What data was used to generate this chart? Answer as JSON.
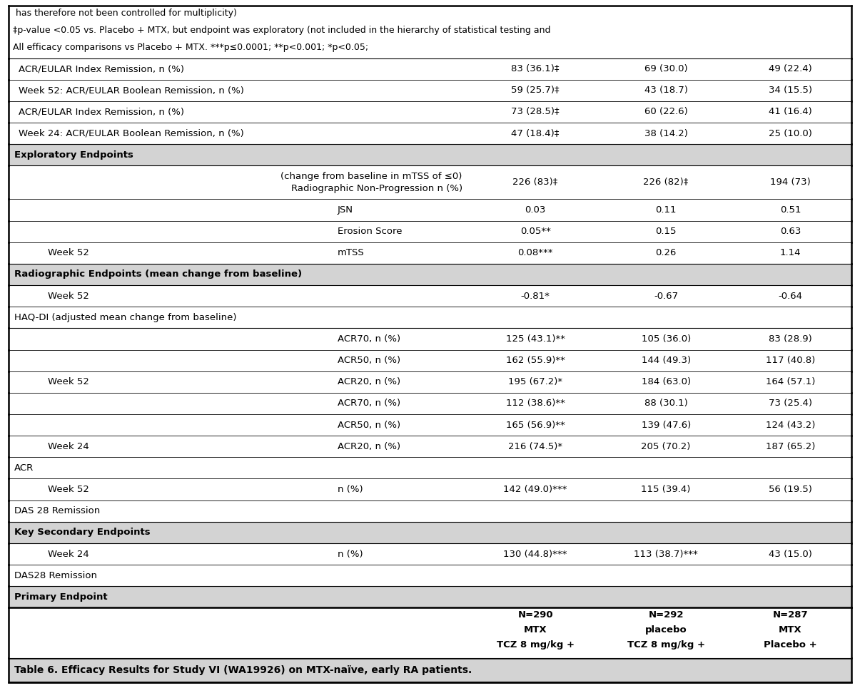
{
  "title": "Table 6. Efficacy Results for Study VI (WA19926) on MTX-naïve, early RA patients.",
  "col_headers": [
    [
      "TCZ 8 mg/kg +",
      "MTX",
      "N=290"
    ],
    [
      "TCZ 8 mg/kg +",
      "placebo",
      "N=292"
    ],
    [
      "Placebo +",
      "MTX",
      "N=287"
    ]
  ],
  "title_bg": "#d3d3d3",
  "section_bg": "#d3d3d3",
  "rows": [
    {
      "type": "section",
      "c0": "Primary Endpoint",
      "c1": "",
      "c2": "",
      "c3": "",
      "c4": ""
    },
    {
      "type": "subheader",
      "c0": "DAS28 Remission",
      "c1": "",
      "c2": "",
      "c3": "",
      "c4": ""
    },
    {
      "type": "data",
      "c0": "Week 24",
      "c1": "n (%)",
      "c2": "130 (44.8)***",
      "c3": "113 (38.7)***",
      "c4": "43 (15.0)"
    },
    {
      "type": "section",
      "c0": "Key Secondary Endpoints",
      "c1": "",
      "c2": "",
      "c3": "",
      "c4": ""
    },
    {
      "type": "subheader",
      "c0": "DAS 28 Remission",
      "c1": "",
      "c2": "",
      "c3": "",
      "c4": ""
    },
    {
      "type": "data",
      "c0": "Week 52",
      "c1": "n (%)",
      "c2": "142 (49.0)***",
      "c3": "115 (39.4)",
      "c4": "56 (19.5)"
    },
    {
      "type": "subheader",
      "c0": "ACR",
      "c1": "",
      "c2": "",
      "c3": "",
      "c4": ""
    },
    {
      "type": "data",
      "c0": "Week 24",
      "c1": "ACR20, n (%)",
      "c2": "216 (74.5)*",
      "c3": "205 (70.2)",
      "c4": "187 (65.2)"
    },
    {
      "type": "data",
      "c0": "",
      "c1": "ACR50, n (%)",
      "c2": "165 (56.9)**",
      "c3": "139 (47.6)",
      "c4": "124 (43.2)"
    },
    {
      "type": "data",
      "c0": "",
      "c1": "ACR70, n (%)",
      "c2": "112 (38.6)**",
      "c3": "88 (30.1)",
      "c4": "73 (25.4)"
    },
    {
      "type": "data",
      "c0": "Week 52",
      "c1": "ACR20, n (%)",
      "c2": "195 (67.2)*",
      "c3": "184 (63.0)",
      "c4": "164 (57.1)"
    },
    {
      "type": "data",
      "c0": "",
      "c1": "ACR50, n (%)",
      "c2": "162 (55.9)**",
      "c3": "144 (49.3)",
      "c4": "117 (40.8)"
    },
    {
      "type": "data",
      "c0": "",
      "c1": "ACR70, n (%)",
      "c2": "125 (43.1)**",
      "c3": "105 (36.0)",
      "c4": "83 (28.9)"
    },
    {
      "type": "haq_header",
      "c0": "HAQ-DI (adjusted mean change from baseline)",
      "c1": "",
      "c2": "",
      "c3": "",
      "c4": ""
    },
    {
      "type": "haq_data",
      "c0": "Week 52",
      "c1": "",
      "c2": "-0.81*",
      "c3": "-0.67",
      "c4": "-0.64"
    },
    {
      "type": "section",
      "c0": "Radiographic Endpoints (mean change from baseline)",
      "c1": "",
      "c2": "",
      "c3": "",
      "c4": ""
    },
    {
      "type": "data",
      "c0": "Week 52",
      "c1": "mTSS",
      "c2": "0.08***",
      "c3": "0.26",
      "c4": "1.14"
    },
    {
      "type": "data",
      "c0": "",
      "c1": "Erosion Score",
      "c2": "0.05**",
      "c3": "0.15",
      "c4": "0.63"
    },
    {
      "type": "data",
      "c0": "",
      "c1": "JSN",
      "c2": "0.03",
      "c3": "0.11",
      "c4": "0.51"
    },
    {
      "type": "data2",
      "c0": "",
      "c1a": "Radiographic Non-Progression n (%)",
      "c1b": "(change from baseline in mTSS of ≤0)",
      "c2": "226 (83)‡",
      "c3": "226 (82)‡",
      "c4": "194 (73)"
    },
    {
      "type": "section",
      "c0": "Exploratory Endpoints",
      "c1": "",
      "c2": "",
      "c3": "",
      "c4": ""
    },
    {
      "type": "exp_data",
      "c0": "Week 24: ACR/EULAR Boolean Remission, n (%)",
      "c1": "",
      "c2": "47 (18.4)‡",
      "c3": "38 (14.2)",
      "c4": "25 (10.0)"
    },
    {
      "type": "exp_data",
      "c0": "ACR/EULAR Index Remission, n (%)",
      "c1": "",
      "c2": "73 (28.5)‡",
      "c3": "60 (22.6)",
      "c4": "41 (16.4)"
    },
    {
      "type": "exp_data",
      "c0": "Week 52: ACR/EULAR Boolean Remission, n (%)",
      "c1": "",
      "c2": "59 (25.7)‡",
      "c3": "43 (18.7)",
      "c4": "34 (15.5)"
    },
    {
      "type": "exp_data",
      "c0": "ACR/EULAR Index Remission, n (%)",
      "c1": "",
      "c2": "83 (36.1)‡",
      "c3": "69 (30.0)",
      "c4": "49 (22.4)"
    }
  ],
  "footnotes": [
    "All efficacy comparisons vs Placebo + MTX. ***p≤0.0001; **p<0.001; *p<0.05;",
    "‡p-value <0.05 vs. Placebo + MTX, but endpoint was exploratory (not included in the hierarchy of statistical testing and",
    " has therefore not been controlled for multiplicity)"
  ]
}
